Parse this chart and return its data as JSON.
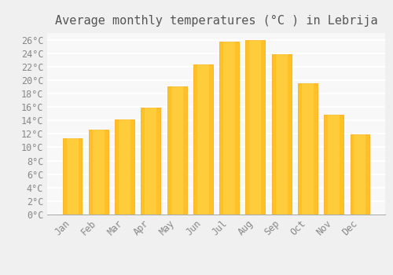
{
  "title": "Average monthly temperatures (°C ) in Lebrija",
  "months": [
    "Jan",
    "Feb",
    "Mar",
    "Apr",
    "May",
    "Jun",
    "Jul",
    "Aug",
    "Sep",
    "Oct",
    "Nov",
    "Dec"
  ],
  "values": [
    11.3,
    12.6,
    14.2,
    15.9,
    19.0,
    22.3,
    25.7,
    26.0,
    23.9,
    19.5,
    14.9,
    11.9
  ],
  "bar_color_main": "#FFC125",
  "bar_color_edge": "#FFA500",
  "background_color": "#F0F0F0",
  "plot_bg_color": "#F8F8F8",
  "grid_color": "#FFFFFF",
  "text_color": "#888888",
  "title_color": "#555555",
  "ylim": [
    0,
    27
  ],
  "ytick_step": 2,
  "title_fontsize": 11,
  "tick_fontsize": 8.5,
  "bar_width": 0.75
}
